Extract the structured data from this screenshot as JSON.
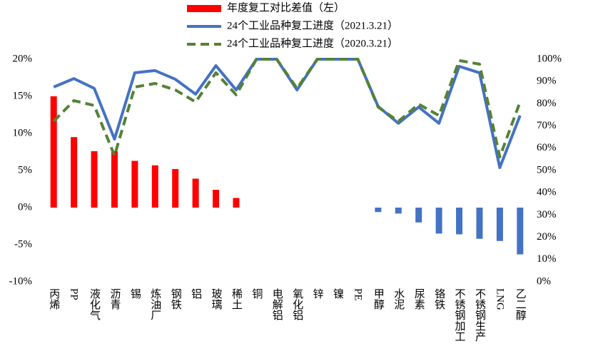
{
  "chart_data": {
    "type": "bar_line",
    "categories": [
      "丙烯",
      "PP",
      "液化气",
      "沥青",
      "锡",
      "炼油厂",
      "钢铁",
      "铝",
      "玻璃",
      "稀土",
      "铜",
      "电解铝",
      "氧化铝",
      "锌",
      "镍",
      "PE",
      "甲醇",
      "水泥",
      "尿素",
      "铬铁",
      "不锈钢加工",
      "不锈钢生产",
      "LNG",
      "乙二醇"
    ],
    "series": [
      {
        "name": "年度复工对比差值（左）",
        "type": "bar",
        "color": "#ff0000",
        "negative_color": "#4472c4",
        "values": [
          15,
          9.5,
          7.6,
          7.6,
          6.3,
          5.7,
          5.2,
          3.9,
          2.4,
          1.3,
          0,
          0,
          0,
          0,
          0,
          0,
          -0.6,
          -0.8,
          -2.0,
          -3.5,
          -3.6,
          -4.2,
          -4.5,
          -6.3
        ]
      },
      {
        "name": "24个工业品种复工进度（2021.3.21）",
        "type": "line",
        "axis": "y2",
        "color": "#4472c4",
        "dashed": false,
        "values": [
          87.5,
          91.3,
          86.9,
          64.1,
          93.9,
          94.9,
          91,
          84.3,
          97.1,
          86.2,
          100,
          100,
          86.2,
          100,
          100,
          100,
          78.8,
          71.2,
          78.5,
          71.2,
          96.8,
          93.9,
          51.3,
          74.7
        ]
      },
      {
        "name": "24个工业品种复工进度（2020.3.21）",
        "type": "line",
        "axis": "y2",
        "color": "#548235",
        "dashed": true,
        "values": [
          72.1,
          81.4,
          79.2,
          56.7,
          87.5,
          89.1,
          86.2,
          80.8,
          93.9,
          84,
          100,
          100,
          86.9,
          100,
          100,
          100,
          78.5,
          72.1,
          79.8,
          74.7,
          99.4,
          97.8,
          56.1,
          80.8
        ]
      }
    ],
    "ylim": [
      -10,
      20
    ],
    "yticks": [
      {
        "value": -10,
        "label": "-10%"
      },
      {
        "value": -5,
        "label": "-5%"
      },
      {
        "value": 0,
        "label": "0%"
      },
      {
        "value": 5,
        "label": "5%"
      },
      {
        "value": 10,
        "label": "10%"
      },
      {
        "value": 15,
        "label": "15%"
      },
      {
        "value": 20,
        "label": "20%"
      }
    ],
    "y2lim": [
      0,
      100
    ],
    "y2ticks": [
      {
        "value": 0,
        "label": "0%"
      },
      {
        "value": 10,
        "label": "10%"
      },
      {
        "value": 20,
        "label": "20%"
      },
      {
        "value": 30,
        "label": "30%"
      },
      {
        "value": 40,
        "label": "40%"
      },
      {
        "value": 50,
        "label": "50%"
      },
      {
        "value": 60,
        "label": "60%"
      },
      {
        "value": 70,
        "label": "70%"
      },
      {
        "value": 80,
        "label": "80%"
      },
      {
        "value": 90,
        "label": "90%"
      },
      {
        "value": 100,
        "label": "100%"
      }
    ],
    "legend": "top"
  }
}
